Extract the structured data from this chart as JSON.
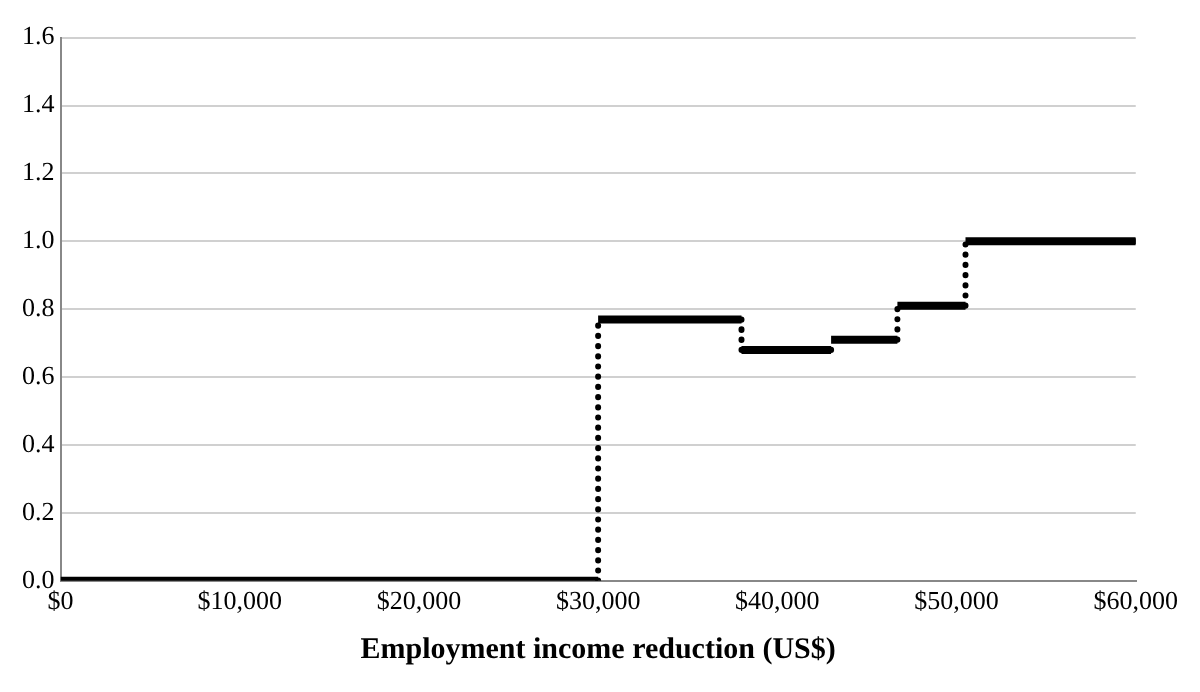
{
  "chart_data": {
    "type": "step",
    "xlabel": "Employment income reduction (US$)",
    "x": [
      0,
      30000,
      38000,
      43000,
      46700,
      50500,
      60000
    ],
    "values": [
      0,
      0.77,
      0.68,
      0.71,
      0.81,
      1,
      1
    ],
    "color": "#000000",
    "xlim": [
      0,
      60000
    ],
    "xticks": [
      {
        "value": 0,
        "label": "$0"
      },
      {
        "value": 10000,
        "label": "$10,000"
      },
      {
        "value": 20000,
        "label": "$20,000"
      },
      {
        "value": 30000,
        "label": "$30,000"
      },
      {
        "value": 40000,
        "label": "$40,000"
      },
      {
        "value": 50000,
        "label": "$50,000"
      },
      {
        "value": 60000,
        "label": "$60,000"
      }
    ],
    "ylim": [
      0,
      1.6
    ],
    "yticks": [
      {
        "value": 0,
        "label": "0.0"
      },
      0.2,
      0.4,
      0.6,
      {
        "value": 1,
        "label": "1.0"
      },
      0.8,
      1.2,
      1.4,
      1.6
    ],
    "grid": "y",
    "legend": false
  }
}
